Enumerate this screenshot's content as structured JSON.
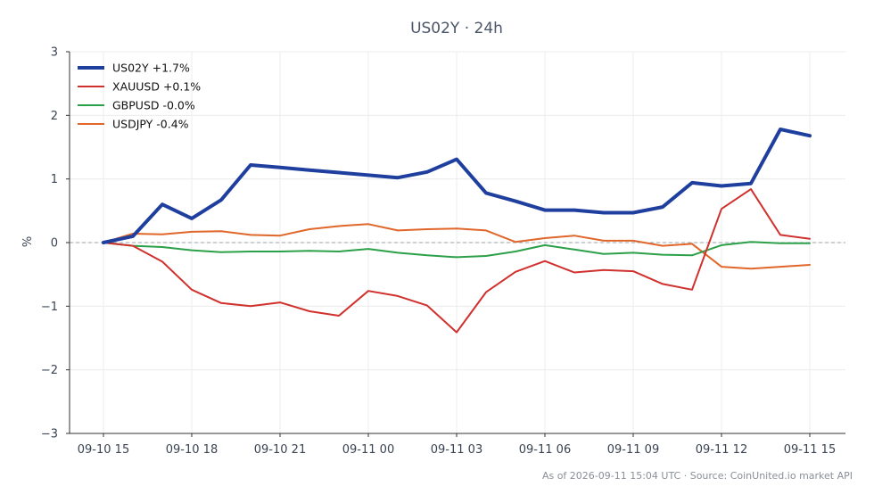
{
  "chart_data": {
    "type": "line",
    "title": "US02Y · 24h",
    "ylabel": "%",
    "ylim": [
      -3,
      3
    ],
    "yticks": [
      "−3",
      "−2",
      "−1",
      "0",
      "1",
      "2",
      "3"
    ],
    "ytick_values": [
      -3,
      -2,
      -1,
      0,
      1,
      2,
      3
    ],
    "xtick_labels": [
      "09-10 15",
      "09-10 18",
      "09-10 21",
      "09-11 00",
      "09-11 03",
      "09-11 06",
      "09-11 09",
      "09-11 12",
      "09-11 15"
    ],
    "xtick_positions": [
      0,
      3,
      6,
      9,
      12,
      15,
      18,
      21,
      24
    ],
    "x": [
      "09-10 15",
      "09-10 16",
      "09-10 17",
      "09-10 18",
      "09-10 19",
      "09-10 20",
      "09-10 21",
      "09-10 22",
      "09-10 23",
      "09-11 00",
      "09-11 01",
      "09-11 02",
      "09-11 03",
      "09-11 04",
      "09-11 05",
      "09-11 06",
      "09-11 07",
      "09-11 08",
      "09-11 09",
      "09-11 10",
      "09-11 11",
      "09-11 12",
      "09-11 13",
      "09-11 14",
      "09-11 15"
    ],
    "grid": true,
    "zero_line": true,
    "legend_position": "top-left",
    "series": [
      {
        "name": "US02Y +1.7%",
        "color": "#1f3f9f",
        "width": 4,
        "values": [
          0,
          0.1,
          0.6,
          0.38,
          0.67,
          1.22,
          1.18,
          1.14,
          1.1,
          1.06,
          1.02,
          1.11,
          1.31,
          0.78,
          0.65,
          0.51,
          0.51,
          0.47,
          0.47,
          0.56,
          0.94,
          0.89,
          0.93,
          1.78,
          1.68
        ]
      },
      {
        "name": "XAUUSD +0.1%",
        "color": "#d0312d",
        "width": 2,
        "values": [
          0,
          -0.05,
          -0.3,
          -0.74,
          -0.95,
          -1.0,
          -0.94,
          -1.08,
          -1.15,
          -0.76,
          -0.84,
          -0.99,
          -1.41,
          -0.78,
          -0.46,
          -0.29,
          -0.47,
          -0.43,
          -0.45,
          -0.65,
          -0.74,
          0.53,
          0.84,
          0.12,
          0.06
        ]
      },
      {
        "name": "GBPUSD -0.0%",
        "color": "#2ca048",
        "width": 2,
        "values": [
          0,
          -0.05,
          -0.07,
          -0.12,
          -0.15,
          -0.14,
          -0.14,
          -0.13,
          -0.14,
          -0.1,
          -0.16,
          -0.2,
          -0.23,
          -0.21,
          -0.14,
          -0.04,
          -0.11,
          -0.18,
          -0.16,
          -0.19,
          -0.2,
          -0.04,
          0.01,
          -0.01,
          -0.01
        ]
      },
      {
        "name": "USDJPY -0.4%",
        "color": "#e0662a",
        "width": 2,
        "values": [
          0,
          0.14,
          0.13,
          0.17,
          0.18,
          0.12,
          0.11,
          0.21,
          0.26,
          0.29,
          0.19,
          0.21,
          0.22,
          0.19,
          0.01,
          0.07,
          0.11,
          0.03,
          0.03,
          -0.05,
          -0.02,
          -0.38,
          -0.41,
          -0.38,
          -0.35
        ]
      }
    ]
  },
  "footer": "As of 2026-09-11 15:04 UTC · Source: CoinUnited.io market API"
}
